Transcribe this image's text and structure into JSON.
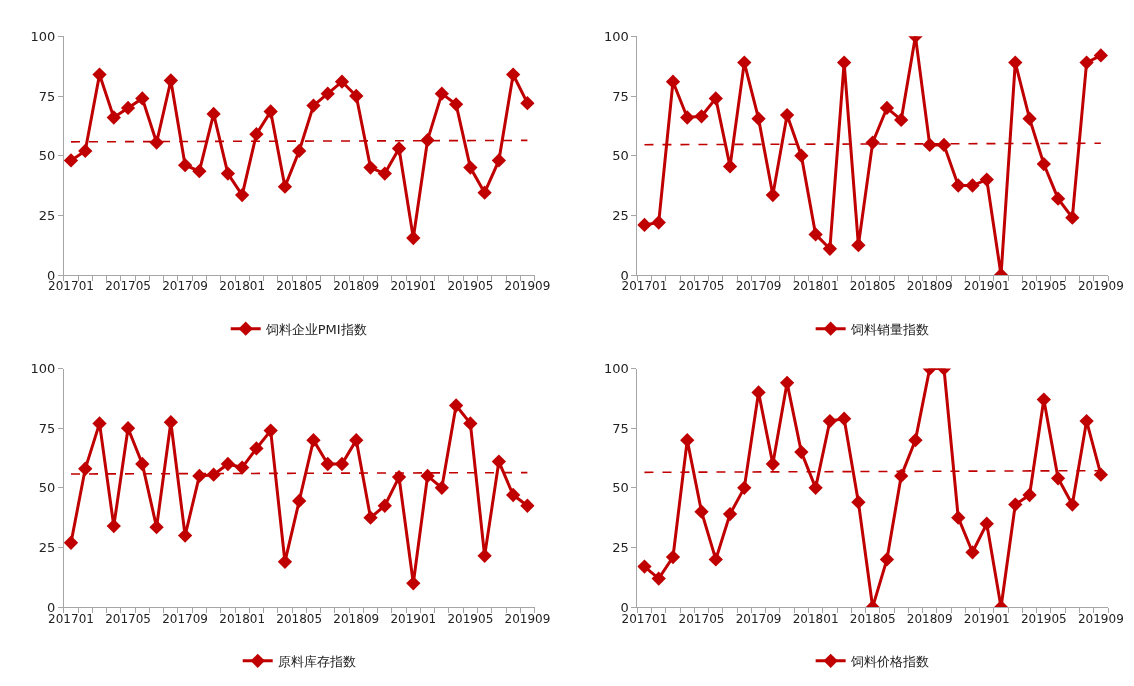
{
  "chart_data": [
    {
      "type": "line",
      "categories": [
        "201701",
        null,
        null,
        null,
        "201705",
        null,
        null,
        null,
        "201709",
        null,
        null,
        null,
        "201801",
        null,
        null,
        null,
        "201805",
        null,
        null,
        null,
        "201809",
        null,
        null,
        null,
        "201901",
        null,
        null,
        null,
        "201905",
        null,
        null,
        null,
        "201909"
      ],
      "ylim": [
        0,
        100
      ],
      "yticks": [
        0,
        25,
        50,
        75,
        100
      ],
      "legend": "bottom",
      "series": [
        {
          "name": "饲料企业PMI指数",
          "color": "#c00000",
          "marker": "diamond",
          "line_style": "solid",
          "values": [
            48,
            52,
            84,
            66,
            70,
            74,
            55.5,
            81.5,
            46,
            43.5,
            67.5,
            42.5,
            33.5,
            59,
            68.5,
            37,
            52,
            71,
            76,
            81,
            75,
            45,
            42.5,
            53,
            15.5,
            56.5,
            76,
            71.5,
            45,
            34.5,
            48,
            84,
            72
          ]
        },
        {
          "type": "line",
          "color": "#c00000",
          "marker": "none",
          "line_style": "dashed",
          "values": [
            55.8,
            null,
            null,
            null,
            null,
            null,
            null,
            null,
            null,
            null,
            null,
            null,
            null,
            null,
            null,
            null,
            null,
            null,
            null,
            null,
            null,
            null,
            null,
            null,
            null,
            null,
            null,
            null,
            null,
            null,
            null,
            null,
            56.4
          ]
        }
      ]
    },
    {
      "type": "line",
      "categories": [
        "201701",
        null,
        null,
        null,
        "201705",
        null,
        null,
        null,
        "201709",
        null,
        null,
        null,
        "201801",
        null,
        null,
        null,
        "201805",
        null,
        null,
        null,
        "201809",
        null,
        null,
        null,
        "201901",
        null,
        null,
        null,
        "201905",
        null,
        null,
        null,
        "201909"
      ],
      "ylim": [
        0,
        100
      ],
      "yticks": [
        0,
        25,
        50,
        75,
        100
      ],
      "legend": "bottom",
      "series": [
        {
          "name": "饲料销量指数",
          "color": "#c00000",
          "marker": "diamond",
          "line_style": "solid",
          "values": [
            21,
            22,
            81,
            66,
            66.5,
            74,
            45.5,
            89,
            65.5,
            33.5,
            67,
            50,
            17,
            11,
            89,
            12.5,
            55.5,
            70,
            65,
            100,
            54.5,
            54.5,
            37.5,
            37.5,
            40,
            0,
            89,
            65.5,
            46.5,
            32,
            24,
            89,
            92
          ]
        },
        {
          "type": "line",
          "color": "#c00000",
          "marker": "none",
          "line_style": "dashed",
          "values": [
            54.6,
            null,
            null,
            null,
            null,
            null,
            null,
            null,
            null,
            null,
            null,
            null,
            null,
            null,
            null,
            null,
            null,
            null,
            null,
            null,
            null,
            null,
            null,
            null,
            null,
            null,
            null,
            null,
            null,
            null,
            null,
            null,
            55.2
          ]
        }
      ]
    },
    {
      "type": "line",
      "categories": [
        "201701",
        null,
        null,
        null,
        "201705",
        null,
        null,
        null,
        "201709",
        null,
        null,
        null,
        "201801",
        null,
        null,
        null,
        "201805",
        null,
        null,
        null,
        "201809",
        null,
        null,
        null,
        "201901",
        null,
        null,
        null,
        "201905",
        null,
        null,
        null,
        "201909"
      ],
      "ylim": [
        0,
        100
      ],
      "yticks": [
        0,
        25,
        50,
        75,
        100
      ],
      "legend": "bottom",
      "series": [
        {
          "name": "原料库存指数",
          "color": "#c00000",
          "marker": "diamond",
          "line_style": "solid",
          "values": [
            27,
            58,
            77,
            34,
            75,
            60,
            33.5,
            77.5,
            30,
            55,
            55.5,
            60,
            58.5,
            66.5,
            74,
            19,
            44.5,
            70,
            60,
            60,
            70,
            37.5,
            42.5,
            54.5,
            10,
            55,
            50,
            84.5,
            77,
            21.5,
            61,
            47,
            42.5
          ]
        },
        {
          "type": "line",
          "color": "#c00000",
          "marker": "none",
          "line_style": "dashed",
          "values": [
            55.8,
            null,
            null,
            null,
            null,
            null,
            null,
            null,
            null,
            null,
            null,
            null,
            null,
            null,
            null,
            null,
            null,
            null,
            null,
            null,
            null,
            null,
            null,
            null,
            null,
            null,
            null,
            null,
            null,
            null,
            null,
            null,
            56.4
          ]
        }
      ]
    },
    {
      "type": "line",
      "categories": [
        "201701",
        null,
        null,
        null,
        "201705",
        null,
        null,
        null,
        "201709",
        null,
        null,
        null,
        "201801",
        null,
        null,
        null,
        "201805",
        null,
        null,
        null,
        "201809",
        null,
        null,
        null,
        "201901",
        null,
        null,
        null,
        "201905",
        null,
        null,
        null,
        "201909"
      ],
      "ylim": [
        0,
        100
      ],
      "yticks": [
        0,
        25,
        50,
        75,
        100
      ],
      "legend": "bottom",
      "series": [
        {
          "name": "饲料价格指数",
          "color": "#c00000",
          "marker": "diamond",
          "line_style": "solid",
          "values": [
            17,
            12,
            21,
            70,
            40,
            20,
            39,
            50,
            90,
            60,
            94,
            65,
            50,
            78,
            79,
            44,
            0,
            20,
            55,
            70,
            100,
            100,
            37.5,
            23,
            35,
            0,
            43,
            47,
            87,
            54,
            43,
            78,
            55.5
          ]
        },
        {
          "type": "line",
          "color": "#c00000",
          "marker": "none",
          "line_style": "dashed",
          "values": [
            56.5,
            null,
            null,
            null,
            null,
            null,
            null,
            null,
            null,
            null,
            null,
            null,
            null,
            null,
            null,
            null,
            null,
            null,
            null,
            null,
            null,
            null,
            null,
            null,
            null,
            null,
            null,
            null,
            null,
            null,
            null,
            null,
            57.2
          ]
        }
      ]
    }
  ]
}
